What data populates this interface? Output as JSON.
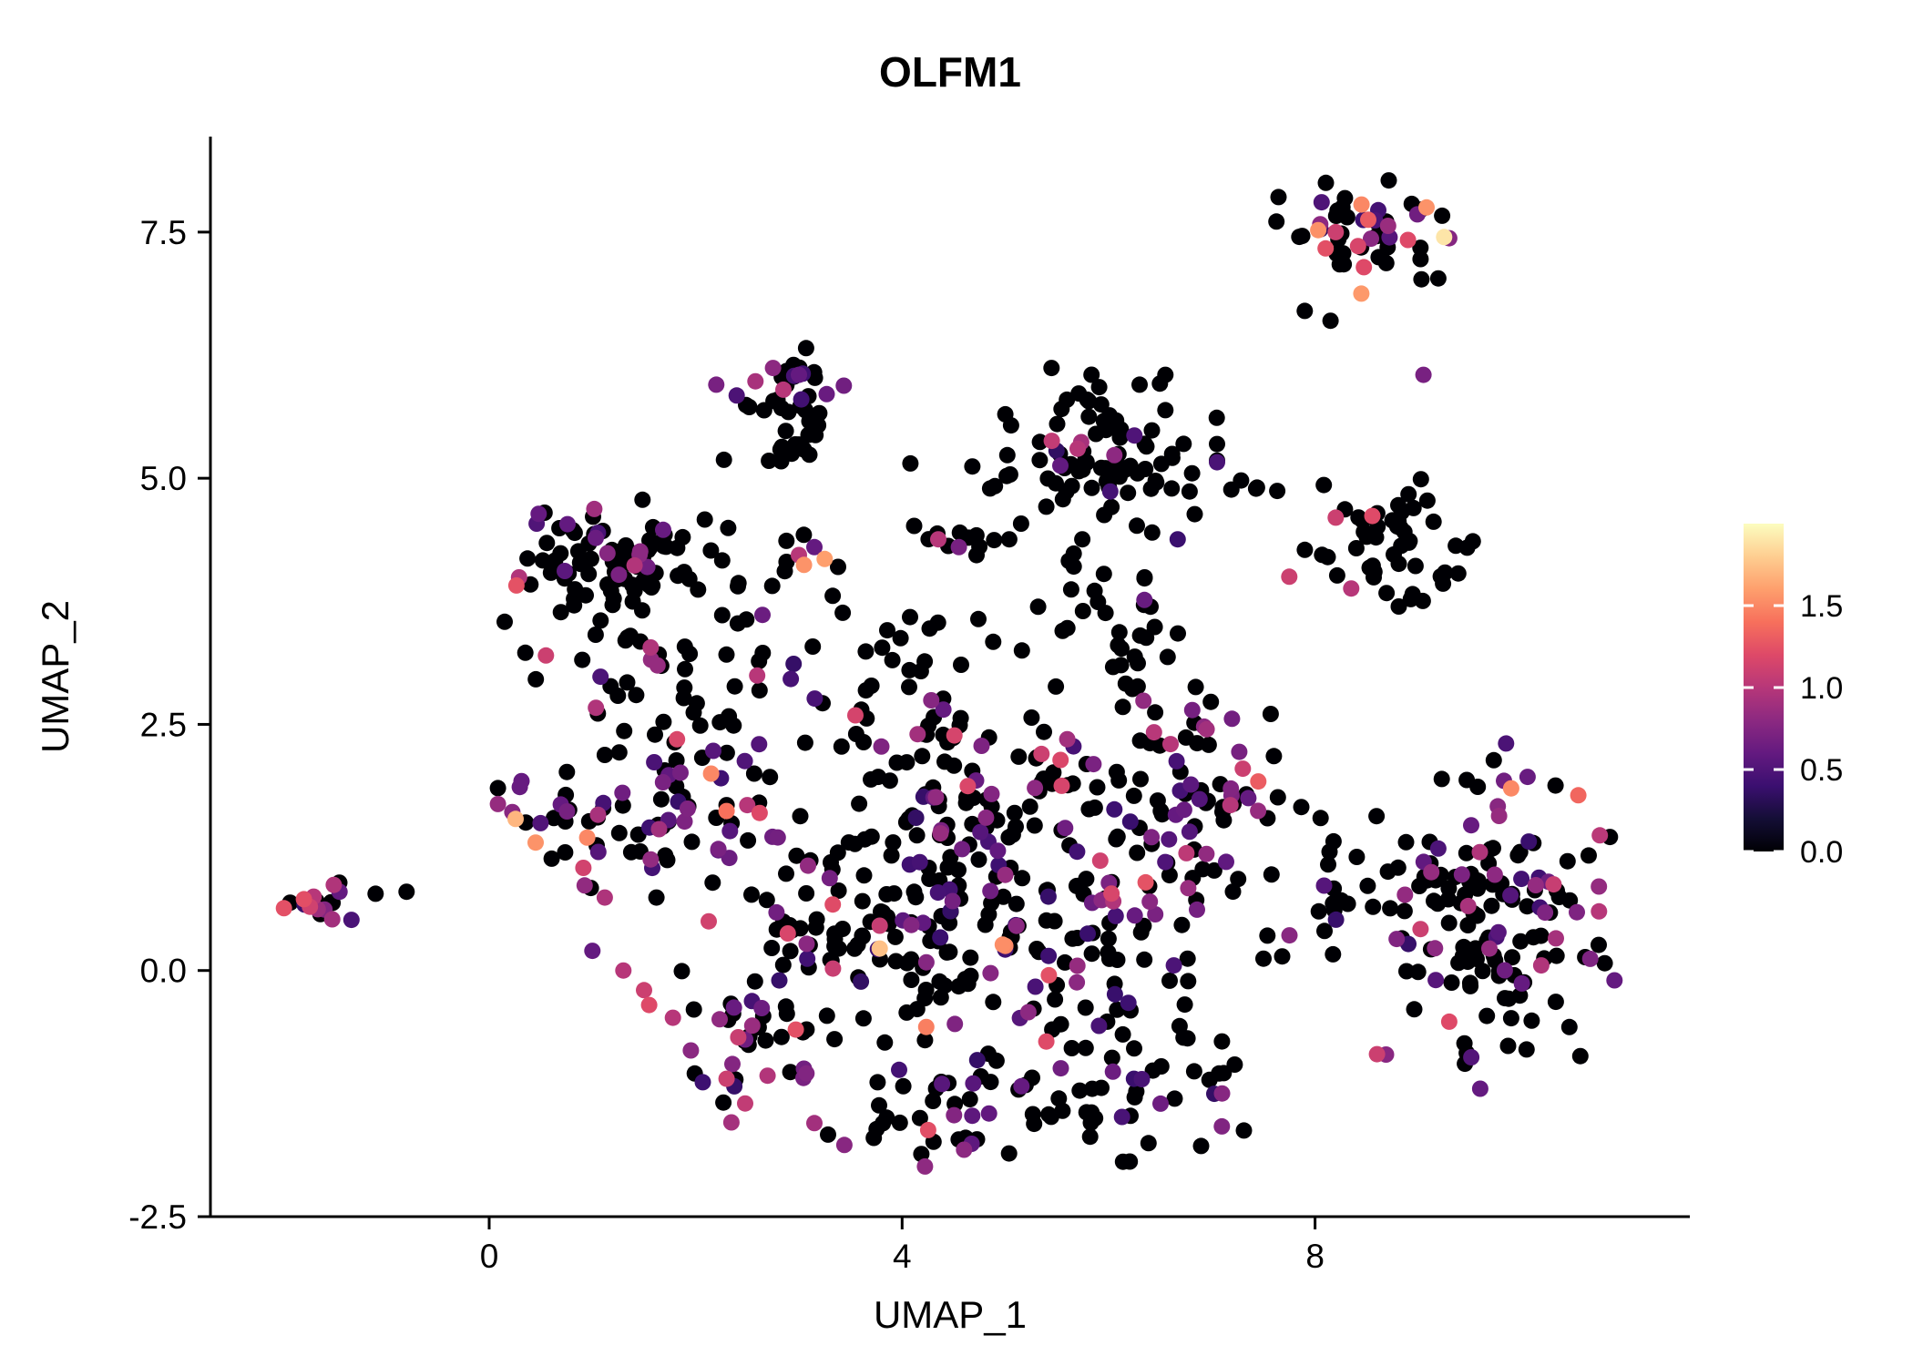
{
  "chart_data": {
    "type": "scatter",
    "title": "OLFM1",
    "xlabel": "UMAP_1",
    "ylabel": "UMAP_2",
    "xlim": [
      -2.7,
      11.63
    ],
    "ylim": [
      -2.5,
      8.47
    ],
    "grid": false,
    "x_ticks": {
      "values": [
        0,
        4,
        8
      ],
      "labels": [
        "0",
        "4",
        "8"
      ]
    },
    "y_ticks": {
      "values": [
        -2.5,
        0.0,
        2.5,
        5.0,
        7.5
      ],
      "labels": [
        "-2.5",
        "0.0",
        "2.5",
        "5.0",
        "7.5"
      ]
    },
    "point_radius": 9,
    "seed": 20,
    "colorbar": {
      "position": "right",
      "range": [
        0,
        2.0
      ],
      "ticks": {
        "values": [
          0.0,
          0.5,
          1.0,
          1.5
        ],
        "labels": [
          "0.0",
          "0.5",
          "1.0",
          "1.5"
        ]
      },
      "colormap": "magma",
      "stops": [
        [
          0.0,
          "#000004"
        ],
        [
          0.1,
          "#140e36"
        ],
        [
          0.2,
          "#3b0f70"
        ],
        [
          0.3,
          "#641a80"
        ],
        [
          0.4,
          "#8c2981"
        ],
        [
          0.5,
          "#b73779"
        ],
        [
          0.6,
          "#de4968"
        ],
        [
          0.7,
          "#f7705c"
        ],
        [
          0.8,
          "#fe9f6d"
        ],
        [
          0.9,
          "#fece91"
        ],
        [
          1.0,
          "#fcfdbf"
        ]
      ]
    },
    "clusters": [
      {
        "cx": -1.62,
        "cy": 0.68,
        "rx": 0.16,
        "ry": 0.12,
        "n": 16,
        "mix": [
          [
            0,
            0.45
          ],
          [
            0.6,
            0.3
          ],
          [
            1.0,
            0.25
          ]
        ]
      },
      {
        "cx": 1.15,
        "cy": 4.1,
        "rx": 0.45,
        "ry": 0.33,
        "n": 95,
        "mix": [
          [
            0,
            0.82
          ],
          [
            0.6,
            0.12
          ],
          [
            1.0,
            0.06
          ]
        ]
      },
      {
        "cx": 1.5,
        "cy": 2.95,
        "rx": 0.5,
        "ry": 0.3,
        "n": 28,
        "mix": [
          [
            0,
            0.75
          ],
          [
            0.6,
            0.18
          ],
          [
            1.0,
            0.07
          ]
        ]
      },
      {
        "cx": 1.35,
        "cy": 1.5,
        "rx": 0.55,
        "ry": 0.33,
        "n": 65,
        "mix": [
          [
            0,
            0.62
          ],
          [
            0.6,
            0.24
          ],
          [
            1.0,
            0.1
          ],
          [
            1.5,
            0.04
          ]
        ]
      },
      {
        "cx": 2.95,
        "cy": 5.8,
        "rx": 0.24,
        "ry": 0.25,
        "n": 38,
        "mix": [
          [
            0,
            0.78
          ],
          [
            0.6,
            0.18
          ],
          [
            1.0,
            0.04
          ]
        ]
      },
      {
        "cx": 2.8,
        "cy": 5.25,
        "rx": 0.25,
        "ry": 0.12,
        "n": 8,
        "mix": [
          [
            0,
            1.0
          ]
        ]
      },
      {
        "cx": 4.5,
        "cy": 4.35,
        "rx": 0.2,
        "ry": 0.1,
        "n": 9,
        "mix": [
          [
            0,
            0.55
          ],
          [
            0.6,
            0.25
          ],
          [
            1.0,
            0.2
          ]
        ]
      },
      {
        "cx": 5.9,
        "cy": 5.3,
        "rx": 0.5,
        "ry": 0.4,
        "n": 85,
        "mix": [
          [
            0,
            0.94
          ],
          [
            0.6,
            0.04
          ],
          [
            1.0,
            0.02
          ]
        ]
      },
      {
        "cx": 6.1,
        "cy": 3.6,
        "rx": 0.35,
        "ry": 0.55,
        "n": 40,
        "mix": [
          [
            0,
            0.9
          ],
          [
            0.6,
            0.08
          ],
          [
            1.0,
            0.02
          ]
        ]
      },
      {
        "cx": 7.35,
        "cy": 4.95,
        "rx": 0.25,
        "ry": 0.2,
        "n": 6,
        "mix": [
          [
            0,
            1.0
          ]
        ]
      },
      {
        "cx": 8.6,
        "cy": 7.45,
        "rx": 0.45,
        "ry": 0.25,
        "n": 50,
        "mix": [
          [
            0,
            0.58
          ],
          [
            0.6,
            0.24
          ],
          [
            1.0,
            0.12
          ],
          [
            1.5,
            0.06
          ]
        ]
      },
      {
        "cx": 8.7,
        "cy": 4.3,
        "rx": 0.36,
        "ry": 0.3,
        "n": 50,
        "mix": [
          [
            0,
            0.88
          ],
          [
            0.6,
            0.06
          ],
          [
            1.0,
            0.06
          ]
        ]
      },
      {
        "cx": 9.6,
        "cy": 0.65,
        "rx": 0.62,
        "ry": 0.72,
        "n": 150,
        "mix": [
          [
            0,
            0.74
          ],
          [
            0.6,
            0.17
          ],
          [
            1.0,
            0.07
          ],
          [
            1.5,
            0.02
          ]
        ]
      },
      {
        "cx": 5.3,
        "cy": 0.55,
        "rx": 0.85,
        "ry": 0.75,
        "n": 180,
        "mix": [
          [
            0,
            0.68
          ],
          [
            0.6,
            0.26
          ],
          [
            1.0,
            0.05
          ],
          [
            1.5,
            0.01
          ]
        ]
      },
      {
        "cx": 3.6,
        "cy": 0.4,
        "rx": 0.6,
        "ry": 0.75,
        "n": 85,
        "mix": [
          [
            0,
            0.7
          ],
          [
            0.6,
            0.24
          ],
          [
            1.0,
            0.06
          ]
        ]
      },
      {
        "cx": 4.8,
        "cy": -1.35,
        "rx": 0.8,
        "ry": 0.3,
        "n": 55,
        "mix": [
          [
            0,
            0.72
          ],
          [
            0.6,
            0.22
          ],
          [
            1.0,
            0.06
          ]
        ]
      },
      {
        "cx": 2.5,
        "cy": -0.65,
        "rx": 0.4,
        "ry": 0.5,
        "n": 40,
        "mix": [
          [
            0,
            0.55
          ],
          [
            0.6,
            0.28
          ],
          [
            1.0,
            0.17
          ]
        ]
      },
      {
        "cx": 4.9,
        "cy": 2.05,
        "rx": 0.9,
        "ry": 0.3,
        "n": 55,
        "mix": [
          [
            0,
            0.76
          ],
          [
            0.6,
            0.17
          ],
          [
            1.0,
            0.07
          ]
        ]
      },
      {
        "cx": 6.8,
        "cy": 1.5,
        "rx": 0.45,
        "ry": 0.6,
        "n": 55,
        "mix": [
          [
            0,
            0.8
          ],
          [
            0.6,
            0.12
          ],
          [
            1.0,
            0.08
          ]
        ]
      },
      {
        "cx": 3.9,
        "cy": 3.15,
        "rx": 0.75,
        "ry": 0.45,
        "n": 35,
        "mix": [
          [
            0,
            0.85
          ],
          [
            0.6,
            0.12
          ],
          [
            1.0,
            0.03
          ]
        ]
      },
      {
        "cx": 2.2,
        "cy": 2.3,
        "rx": 0.4,
        "ry": 0.35,
        "n": 20,
        "mix": [
          [
            0,
            0.7
          ],
          [
            0.6,
            0.2
          ],
          [
            1.0,
            0.1
          ]
        ]
      },
      {
        "cx": 2.6,
        "cy": 3.7,
        "rx": 0.3,
        "ry": 0.5,
        "n": 15,
        "mix": [
          [
            0,
            0.8
          ],
          [
            0.6,
            0.2
          ]
        ]
      },
      {
        "cx": 8.0,
        "cy": 1.0,
        "rx": 0.35,
        "ry": 0.7,
        "n": 18,
        "mix": [
          [
            0,
            0.85
          ],
          [
            0.6,
            0.15
          ]
        ]
      },
      {
        "cx": 6.5,
        "cy": -1.0,
        "rx": 0.5,
        "ry": 0.45,
        "n": 30,
        "mix": [
          [
            0,
            0.8
          ],
          [
            0.6,
            0.15
          ],
          [
            1.0,
            0.05
          ]
        ]
      }
    ],
    "points": [
      [
        -1.1,
        0.78,
        0
      ],
      [
        -0.8,
        0.8,
        0
      ],
      [
        -1.52,
        0.52,
        0.9
      ],
      [
        -1.7,
        0.75,
        1.0
      ],
      [
        -1.45,
        0.8,
        0.6
      ],
      [
        4.08,
        5.15,
        0
      ],
      [
        4.68,
        5.12,
        0
      ],
      [
        5.7,
        5.3,
        1.0
      ],
      [
        5.45,
        5.38,
        1.05
      ],
      [
        9.05,
        6.05,
        0.7
      ],
      [
        7.9,
        6.7,
        0
      ],
      [
        8.15,
        6.6,
        0
      ],
      [
        3.05,
        4.12,
        1.55
      ],
      [
        3.25,
        4.18,
        1.6
      ],
      [
        3.0,
        4.22,
        1.0
      ],
      [
        3.38,
        4.1,
        0
      ],
      [
        2.88,
        4.15,
        0
      ],
      [
        3.15,
        4.3,
        0.6
      ],
      [
        9.25,
        7.45,
        1.9
      ],
      [
        8.45,
        7.78,
        1.5
      ],
      [
        9.08,
        7.75,
        1.55
      ],
      [
        8.2,
        7.5,
        1.1
      ],
      [
        8.9,
        7.42,
        1.2
      ],
      [
        8.05,
        7.58,
        0.8
      ],
      [
        0.55,
        3.2,
        1.1
      ],
      [
        2.3,
        1.62,
        1.4
      ],
      [
        0.95,
        1.35,
        1.5
      ],
      [
        0.45,
        1.3,
        1.55
      ],
      [
        5.0,
        0.25,
        1.5
      ],
      [
        2.15,
        2.0,
        1.5
      ],
      [
        2.5,
        1.68,
        1.0
      ],
      [
        2.62,
        1.6,
        1.2
      ],
      [
        9.9,
        1.85,
        1.5
      ],
      [
        10.55,
        1.78,
        1.35
      ],
      [
        6.6,
        2.3,
        1.0
      ],
      [
        7.3,
        2.05,
        1.1
      ],
      [
        7.45,
        1.92,
        1.3
      ],
      [
        1.55,
        -0.35,
        1.2
      ],
      [
        1.78,
        -0.48,
        1.0
      ],
      [
        2.3,
        -1.1,
        1.1
      ],
      [
        2.48,
        -1.35,
        1.05
      ],
      [
        3.15,
        -1.55,
        0.9
      ],
      [
        4.6,
        -1.82,
        0.8
      ],
      [
        8.6,
        -0.85,
        1.1
      ],
      [
        9.3,
        -0.52,
        1.2
      ],
      [
        9.6,
        -1.2,
        0.6
      ],
      [
        6.95,
        2.45,
        0.9
      ],
      [
        7.18,
        1.68,
        1.0
      ],
      [
        5.35,
        2.2,
        1.1
      ],
      [
        5.6,
        2.35,
        0.9
      ],
      [
        4.35,
        4.38,
        1.0
      ],
      [
        4.55,
        4.3,
        0.7
      ],
      [
        4.72,
        4.42,
        0
      ],
      [
        8.2,
        4.6,
        1.1
      ],
      [
        7.75,
        4.0,
        1.1
      ],
      [
        8.35,
        3.88,
        1.0
      ],
      [
        2.2,
        5.95,
        0.7
      ],
      [
        2.75,
        6.12,
        0.8
      ],
      [
        2.85,
        5.9,
        1.0
      ],
      [
        3.0,
        6.05,
        0.6
      ],
      [
        10.9,
        -0.1,
        0.6
      ],
      [
        10.75,
        0.6,
        1.0
      ],
      [
        1.0,
        0.2,
        0.6
      ],
      [
        1.3,
        0.0,
        1.0
      ],
      [
        1.5,
        -0.2,
        1.1
      ],
      [
        6.3,
        5.95,
        0
      ],
      [
        6.55,
        6.05,
        0
      ],
      [
        5.0,
        5.65,
        0
      ],
      [
        4.4,
        2.65,
        0.6
      ],
      [
        4.15,
        2.4,
        0.9
      ]
    ]
  },
  "style": {
    "background": "#ffffff",
    "axis_color": "#000000",
    "text_color": "#000000",
    "colorbar_tick_color": "#ffffff"
  }
}
